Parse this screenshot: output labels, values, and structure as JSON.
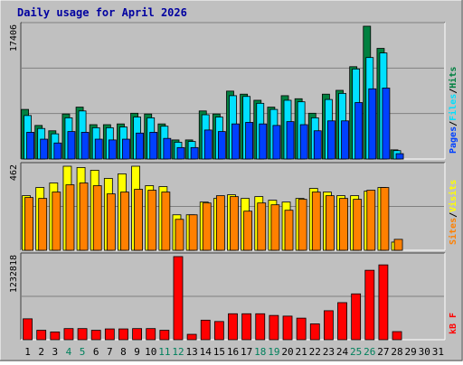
{
  "chart_data": [
    {
      "type": "bar",
      "title": "Daily usage for April 2026",
      "ymax_label": "17406",
      "ylim": [
        0,
        17406
      ],
      "grid": true,
      "legend": [
        "Pages",
        "Files",
        "Hits"
      ],
      "categories": [
        "1",
        "2",
        "3",
        "4",
        "5",
        "6",
        "7",
        "8",
        "9",
        "10",
        "11",
        "12",
        "13",
        "14",
        "15",
        "16",
        "17",
        "18",
        "19",
        "20",
        "21",
        "22",
        "23",
        "24",
        "25",
        "26",
        "27",
        "28",
        "29",
        "30",
        "31"
      ],
      "series": [
        {
          "name": "Hits",
          "color": "#008040",
          "values": [
            6500,
            4400,
            3700,
            5900,
            6800,
            4500,
            4500,
            4600,
            6000,
            5900,
            4600,
            2500,
            2500,
            6300,
            5900,
            8900,
            8500,
            7700,
            6800,
            8300,
            7900,
            6000,
            8500,
            9000,
            12100,
            17406,
            14500,
            1200,
            null,
            null,
            null
          ]
        },
        {
          "name": "Files",
          "color": "#00e0ff",
          "values": [
            5700,
            4000,
            3300,
            5400,
            6300,
            4100,
            4100,
            4200,
            5500,
            5400,
            4300,
            2200,
            2300,
            5800,
            5500,
            8300,
            8200,
            7300,
            6500,
            7700,
            7500,
            5400,
            7800,
            8600,
            11800,
            13300,
            13900,
            1100,
            null,
            null,
            null
          ]
        },
        {
          "name": "Pages",
          "color": "#0040ff",
          "values": [
            3500,
            2600,
            2100,
            3600,
            3500,
            2600,
            2500,
            2600,
            3400,
            3500,
            2700,
            1500,
            1500,
            3800,
            3600,
            4600,
            4800,
            4600,
            4400,
            4900,
            4500,
            3700,
            5000,
            5000,
            7400,
            9200,
            9300,
            700,
            null,
            null,
            null
          ]
        }
      ]
    },
    {
      "type": "bar",
      "ymax_label": "462",
      "ylim": [
        0,
        462
      ],
      "grid": true,
      "legend": [
        "Sites",
        "Visits"
      ],
      "categories": [
        "1",
        "2",
        "3",
        "4",
        "5",
        "6",
        "7",
        "8",
        "9",
        "10",
        "11",
        "12",
        "13",
        "14",
        "15",
        "16",
        "17",
        "18",
        "19",
        "20",
        "21",
        "22",
        "23",
        "24",
        "25",
        "26",
        "27",
        "28",
        "29",
        "30",
        "31"
      ],
      "series": [
        {
          "name": "Visits",
          "color": "#ffff00",
          "values": [
            300,
            345,
            370,
            462,
            455,
            440,
            395,
            420,
            462,
            355,
            350,
            195,
            195,
            265,
            285,
            305,
            285,
            295,
            275,
            265,
            285,
            340,
            320,
            300,
            300,
            325,
            345,
            45,
            null,
            null,
            null
          ]
        },
        {
          "name": "Sites",
          "color": "#ff8000",
          "values": [
            290,
            285,
            320,
            360,
            370,
            355,
            310,
            320,
            335,
            330,
            320,
            170,
            195,
            260,
            300,
            295,
            215,
            260,
            250,
            220,
            280,
            320,
            300,
            285,
            280,
            330,
            345,
            60,
            null,
            null,
            null
          ]
        }
      ]
    },
    {
      "type": "bar",
      "ymax_label": "1232818",
      "ylim": [
        0,
        1232818
      ],
      "grid": true,
      "legend": [
        "kB F"
      ],
      "categories": [
        "1",
        "2",
        "3",
        "4",
        "5",
        "6",
        "7",
        "8",
        "9",
        "10",
        "11",
        "12",
        "13",
        "14",
        "15",
        "16",
        "17",
        "18",
        "19",
        "20",
        "21",
        "22",
        "23",
        "24",
        "25",
        "26",
        "27",
        "28",
        "29",
        "30",
        "31"
      ],
      "series": [
        {
          "name": "kB F",
          "color": "#ff0000",
          "values": [
            310000,
            140000,
            115000,
            165000,
            165000,
            140000,
            160000,
            160000,
            165000,
            165000,
            140000,
            1232818,
            80000,
            290000,
            270000,
            385000,
            385000,
            385000,
            360000,
            350000,
            320000,
            235000,
            430000,
            550000,
            680000,
            1030000,
            1110000,
            120000,
            null,
            null,
            null
          ]
        }
      ]
    }
  ],
  "x_label_colors": {
    "weekday": "#000000",
    "weekend": "#00805c"
  },
  "weekend_days": [
    "4",
    "5",
    "11",
    "12",
    "18",
    "19",
    "25",
    "26"
  ],
  "colors": {
    "background": "#c0c0c0",
    "plot": "#c0c0c0",
    "title": "#0000a0",
    "grid": "#808080"
  }
}
